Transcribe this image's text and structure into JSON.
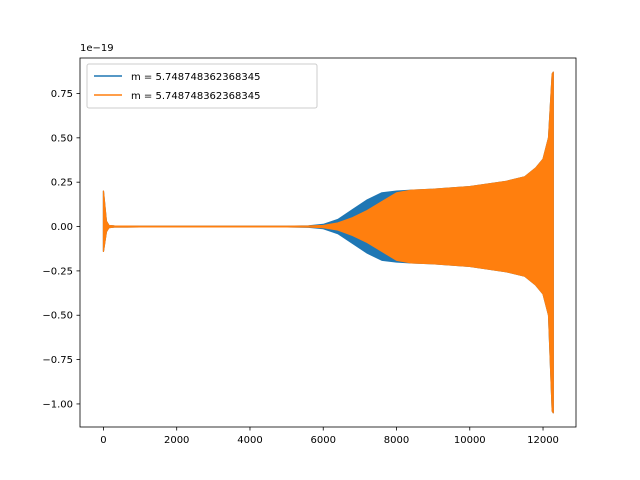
{
  "chart_data": {
    "type": "line",
    "title": "",
    "xlabel": "",
    "ylabel": "",
    "y_offset_label": "1e−19",
    "xlim": [
      -640,
      12900
    ],
    "ylim": [
      -1.13,
      0.95
    ],
    "x_ticks": [
      0,
      2000,
      4000,
      6000,
      8000,
      10000,
      12000
    ],
    "x_tick_labels": [
      "0",
      "2000",
      "4000",
      "6000",
      "8000",
      "10000",
      "12000"
    ],
    "y_ticks": [
      0.75,
      0.5,
      0.25,
      0.0,
      -0.25,
      -0.5,
      -0.75,
      -1.0
    ],
    "y_tick_labels": [
      "0.75",
      "0.50",
      "0.25",
      "0.00",
      "−0.25",
      "−0.50",
      "−0.75",
      "−1.00"
    ],
    "grid": false,
    "legend_position": "top-left",
    "series": [
      {
        "name": "m = 5.748748362368345",
        "color": "#1f77b4",
        "x": [
          0,
          80,
          150,
          300,
          1000,
          3000,
          5000,
          5600,
          6000,
          6400,
          6800,
          7200,
          7600,
          8000,
          8400,
          9000,
          10000,
          11000,
          11500,
          11800,
          12000,
          12150,
          12250,
          12280
        ],
        "y_upper": [
          0.2,
          0.03,
          0.006,
          0.003,
          0.002,
          0.002,
          0.002,
          0.004,
          0.012,
          0.04,
          0.095,
          0.15,
          0.19,
          0.2,
          0.205,
          0.21,
          0.225,
          0.255,
          0.28,
          0.33,
          0.38,
          0.5,
          0.86,
          0.87
        ],
        "y_lower": [
          -0.14,
          -0.03,
          -0.006,
          -0.003,
          -0.002,
          -0.002,
          -0.002,
          -0.004,
          -0.012,
          -0.04,
          -0.095,
          -0.15,
          -0.19,
          -0.2,
          -0.205,
          -0.21,
          -0.225,
          -0.255,
          -0.28,
          -0.33,
          -0.38,
          -0.5,
          -1.04,
          -1.05
        ]
      },
      {
        "name": "m = 5.748748362368345",
        "color": "#ff7f0e",
        "x": [
          0,
          80,
          150,
          300,
          1000,
          3000,
          5000,
          5600,
          6000,
          6400,
          6800,
          7200,
          7600,
          8000,
          8400,
          9000,
          10000,
          11000,
          11500,
          11800,
          12000,
          12150,
          12250,
          12280
        ],
        "y_upper": [
          0.2,
          0.03,
          0.006,
          0.003,
          0.002,
          0.002,
          0.002,
          0.003,
          0.006,
          0.02,
          0.05,
          0.09,
          0.14,
          0.19,
          0.205,
          0.21,
          0.225,
          0.255,
          0.28,
          0.33,
          0.38,
          0.5,
          0.86,
          0.87
        ],
        "y_lower": [
          -0.14,
          -0.03,
          -0.006,
          -0.003,
          -0.002,
          -0.002,
          -0.002,
          -0.003,
          -0.006,
          -0.02,
          -0.05,
          -0.09,
          -0.14,
          -0.19,
          -0.205,
          -0.21,
          -0.225,
          -0.255,
          -0.28,
          -0.33,
          -0.38,
          -0.5,
          -1.04,
          -1.05
        ]
      }
    ]
  }
}
